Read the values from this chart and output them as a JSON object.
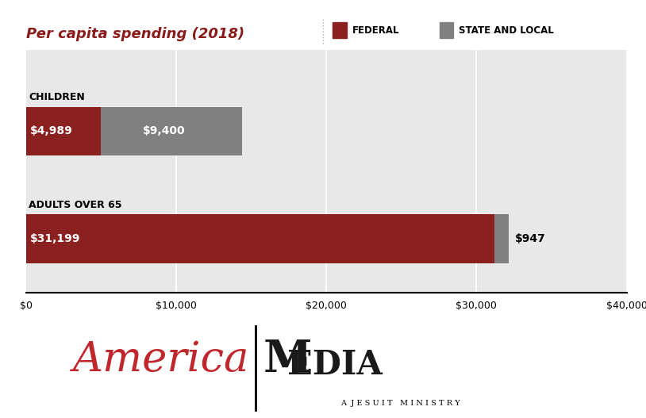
{
  "title": "Per capita spending (2018)",
  "title_color": "#8B1A1A",
  "legend_federal": "FEDERAL",
  "legend_state": "STATE AND LOCAL",
  "federal_color": "#8B2020",
  "state_color": "#808080",
  "bg_color": "#E8E8E8",
  "categories": [
    "CHILDREN",
    "ADULTS OVER 65"
  ],
  "federal_values": [
    4989,
    31199
  ],
  "state_values": [
    9400,
    947
  ],
  "federal_labels": [
    "$4,989",
    "$31,199"
  ],
  "state_labels": [
    "$9,400",
    "$947"
  ],
  "xlim": [
    0,
    40000
  ],
  "xticks": [
    0,
    10000,
    20000,
    30000,
    40000
  ],
  "xtick_labels": [
    "$0",
    "$10,000",
    "$20,000",
    "$30,000",
    "$40,000"
  ],
  "bar_height": 0.45,
  "america_red": "#C0272D",
  "media_dark": "#1a1a1a"
}
